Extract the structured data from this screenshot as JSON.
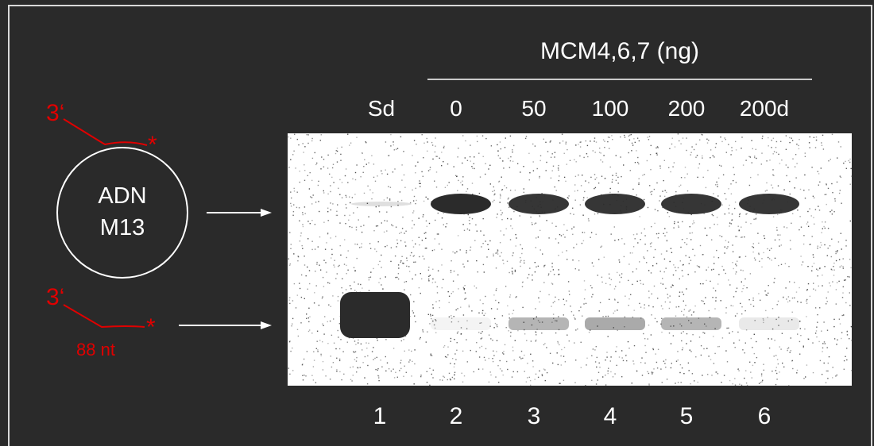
{
  "header": {
    "protein_label": "MCM4,6,7 (ng)",
    "amounts": [
      "Sd",
      "0",
      "50",
      "100",
      "200",
      "200d"
    ]
  },
  "lanes": {
    "numbers": [
      "1",
      "2",
      "3",
      "4",
      "5",
      "6"
    ],
    "upper_band_intensity": [
      0.15,
      1.0,
      0.95,
      0.95,
      0.95,
      0.95
    ],
    "lower_band_intensity": [
      1.0,
      0.05,
      0.35,
      0.4,
      0.35,
      0.1
    ]
  },
  "schematic": {
    "circle_label_line1": "ADN",
    "circle_label_line2": "M13",
    "prime_label_top": "3‘",
    "prime_label_bottom": "3‘",
    "label_mark_top": "*",
    "label_mark_bottom": "*",
    "oligo_length": "88 nt"
  },
  "colors": {
    "background": "#2a2a2a",
    "foreground": "#ffffff",
    "annotation": "#e00000",
    "gel": "#ffffff",
    "band": "#2b2b2b"
  }
}
